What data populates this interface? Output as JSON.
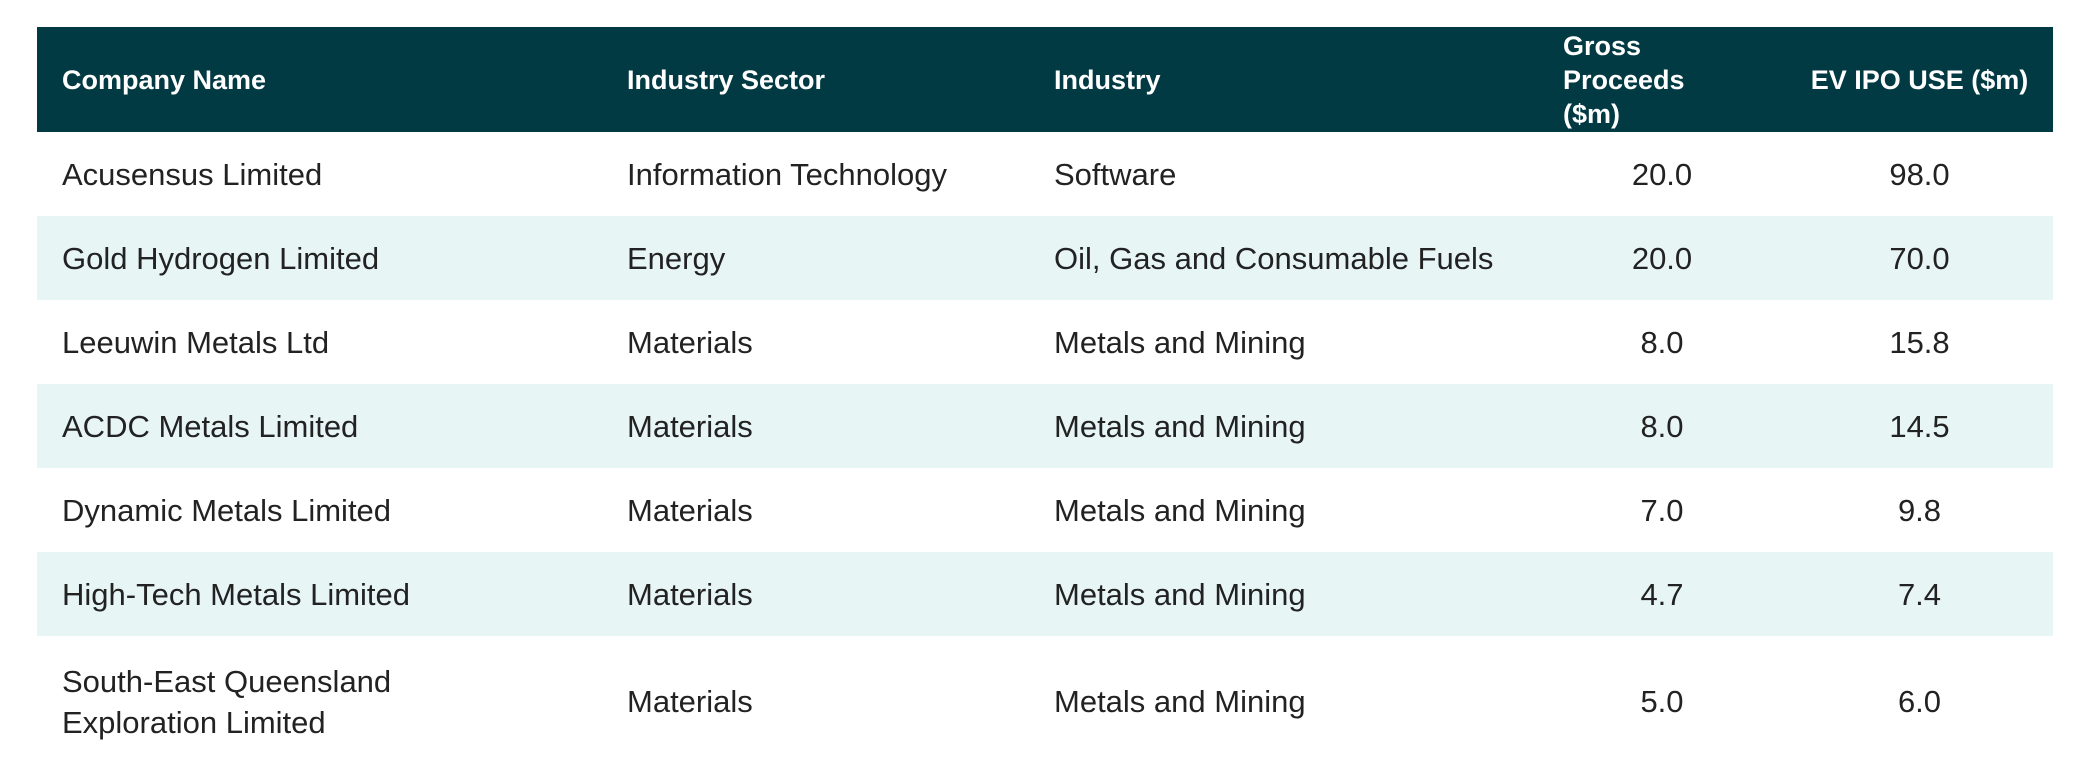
{
  "table": {
    "headers": [
      "Company Name",
      "Industry Sector",
      "Industry",
      "Gross Proceeds ($m)",
      "EV IPO USE ($m)"
    ],
    "rows": [
      {
        "company": "Acusensus Limited",
        "sector": "Information Technology",
        "industry": "Software",
        "gross": "20.0",
        "ev": "98.0"
      },
      {
        "company": "Gold Hydrogen Limited",
        "sector": "Energy",
        "industry": "Oil, Gas and Consumable Fuels",
        "gross": "20.0",
        "ev": "70.0"
      },
      {
        "company": "Leeuwin Metals Ltd",
        "sector": "Materials",
        "industry": "Metals and Mining",
        "gross": "8.0",
        "ev": "15.8"
      },
      {
        "company": "ACDC Metals Limited",
        "sector": "Materials",
        "industry": "Metals and Mining",
        "gross": "8.0",
        "ev": "14.5"
      },
      {
        "company": "Dynamic Metals Limited",
        "sector": "Materials",
        "industry": "Metals and Mining",
        "gross": "7.0",
        "ev": "9.8"
      },
      {
        "company": "High-Tech Metals Limited",
        "sector": "Materials",
        "industry": "Metals and Mining",
        "gross": "4.7",
        "ev": "7.4"
      },
      {
        "company": "South-East Queensland Exploration Limited",
        "sector": "Materials",
        "industry": "Metals and Mining",
        "gross": "5.0",
        "ev": "6.0"
      }
    ]
  },
  "colors": {
    "header_bg": "#023a44",
    "alt_row_bg": "#e7f5f5"
  }
}
